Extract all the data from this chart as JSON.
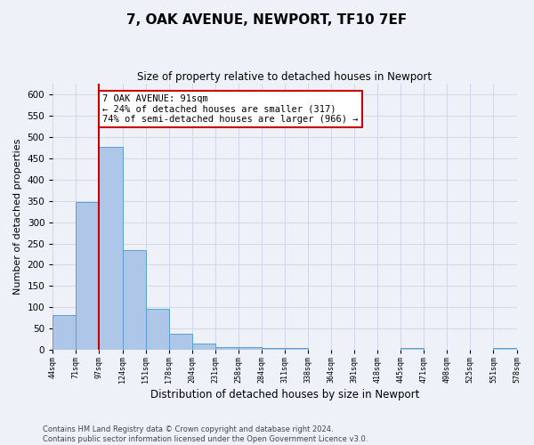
{
  "title_line1": "7, OAK AVENUE, NEWPORT, TF10 7EF",
  "title_line2": "Size of property relative to detached houses in Newport",
  "xlabel": "Distribution of detached houses by size in Newport",
  "ylabel": "Number of detached properties",
  "bar_color": "#aec6e8",
  "bar_edge_color": "#5a9fd4",
  "bar_values": [
    82,
    348,
    476,
    234,
    96,
    37,
    15,
    7,
    7,
    5,
    5,
    0,
    0,
    0,
    0,
    5,
    0,
    0,
    0,
    5
  ],
  "bar_labels": [
    "44sqm",
    "71sqm",
    "97sqm",
    "124sqm",
    "151sqm",
    "178sqm",
    "204sqm",
    "231sqm",
    "258sqm",
    "284sqm",
    "311sqm",
    "338sqm",
    "364sqm",
    "391sqm",
    "418sqm",
    "445sqm",
    "471sqm",
    "498sqm",
    "525sqm",
    "551sqm",
    "578sqm"
  ],
  "ylim": [
    0,
    625
  ],
  "yticks": [
    0,
    50,
    100,
    150,
    200,
    250,
    300,
    350,
    400,
    450,
    500,
    550,
    600
  ],
  "red_line_x": 2,
  "annotation_text": "7 OAK AVENUE: 91sqm\n← 24% of detached houses are smaller (317)\n74% of semi-detached houses are larger (966) →",
  "annotation_box_color": "white",
  "annotation_box_edge_color": "#cc0000",
  "red_line_color": "#cc0000",
  "grid_color": "#d0d8e8",
  "background_color": "#eef2f8",
  "footer_text": "Contains HM Land Registry data © Crown copyright and database right 2024.\nContains public sector information licensed under the Open Government Licence v3.0."
}
